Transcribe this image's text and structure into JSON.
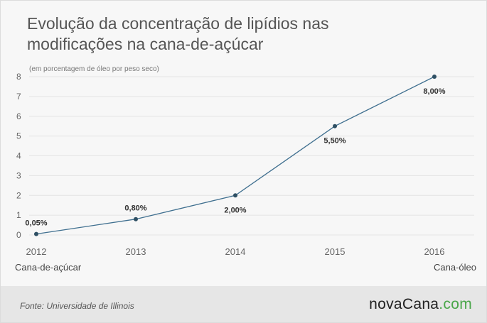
{
  "header": {
    "title_line1": "Evolução da concentração de lipídios nas",
    "title_line2": "modificações na cana-de-açúcar"
  },
  "chart_data": {
    "type": "line",
    "ylabel": "(em porcentagem de óleo por peso seco)",
    "categories": [
      "2012",
      "2013",
      "2014",
      "2015",
      "2016"
    ],
    "series": [
      {
        "values": [
          0.05,
          0.8,
          2.0,
          5.5,
          8.0
        ],
        "labels": [
          "0,05%",
          "0,80%",
          "2,00%",
          "5,50%",
          "8,00%"
        ]
      }
    ],
    "yticks": [
      "0",
      "1",
      "2",
      "3",
      "4",
      "5",
      "6",
      "7",
      "8"
    ],
    "ylim": [
      0,
      8
    ],
    "grid": true,
    "line_color": "#3f6f8f",
    "point_color": "#2e4f63",
    "annotations": {
      "start": "Cana-de-açúcar",
      "end": "Cana-óleo"
    }
  },
  "footer": {
    "source": "Fonte: Universidade de Illinois",
    "brand_name": "novaCana",
    "brand_tld": ".com",
    "brand_accent": "#4aa64a"
  }
}
